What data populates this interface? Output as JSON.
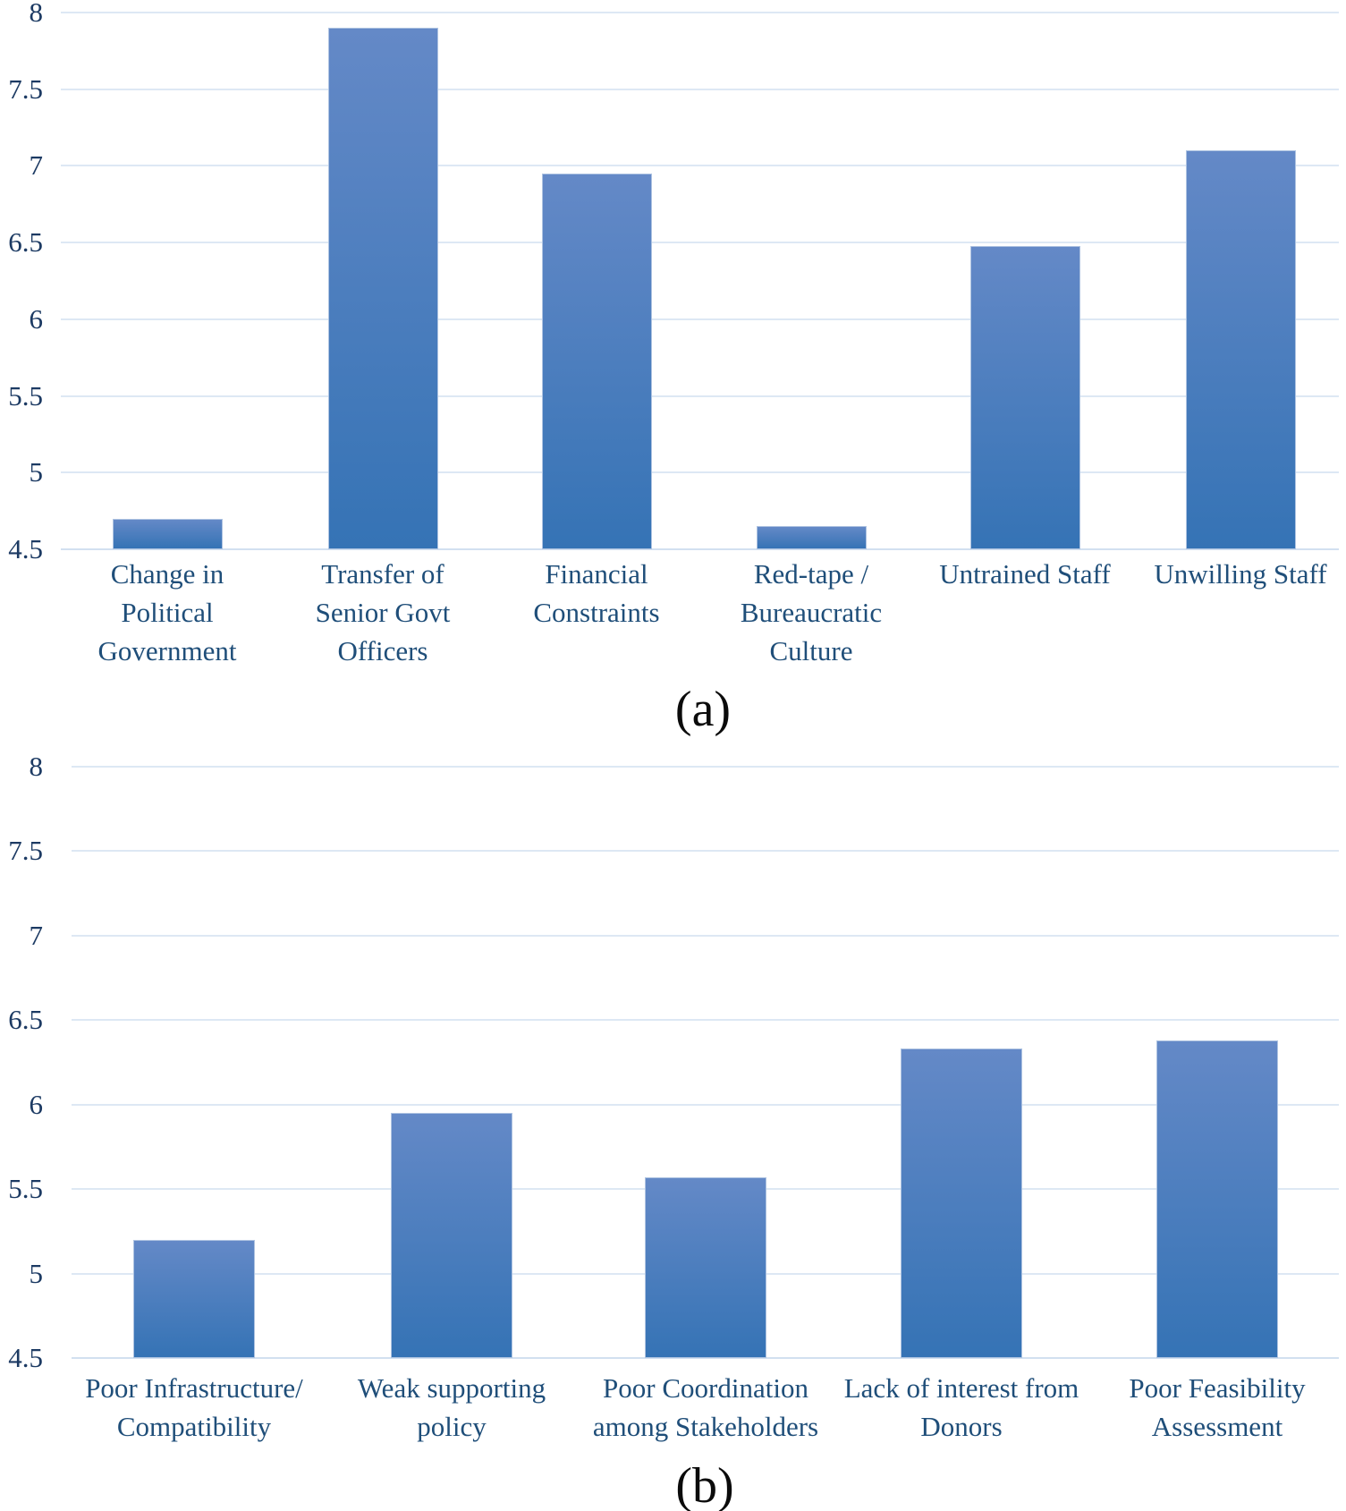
{
  "figure": {
    "panels": [
      {
        "caption": "(a)"
      },
      {
        "caption": "(b)"
      }
    ]
  },
  "colors": {
    "bar_gradient_top": "#6489c7",
    "bar_gradient_bottom": "#3573b5",
    "bar_border": "#aec3e1",
    "gridline": "#dde8f4",
    "baseline": "#d2e0f0",
    "tick_text": "#1c3a63",
    "category_text": "#1f4e79",
    "caption_text": "#0b0b0b"
  },
  "chart_data": [
    {
      "type": "bar",
      "caption": "(a)",
      "title": "",
      "xlabel": "",
      "ylabel": "",
      "categories": [
        "Change in Political Government",
        "Transfer of Senior Govt Officers",
        "Financial Constraints",
        "Red-tape / Bureaucratic Culture",
        "Untrained Staff",
        "Unwilling Staff"
      ],
      "category_lines": [
        [
          "Change in",
          "Political",
          "Government"
        ],
        [
          "Transfer of",
          "Senior Govt",
          "Officers"
        ],
        [
          "Financial",
          "Constraints"
        ],
        [
          "Red-tape /",
          "Bureaucratic",
          "Culture"
        ],
        [
          "Untrained Staff"
        ],
        [
          "Unwilling Staff"
        ]
      ],
      "values": [
        4.7,
        7.9,
        6.95,
        4.65,
        6.48,
        7.1
      ],
      "ylim": [
        4.5,
        8
      ],
      "yticks": [
        4.5,
        5,
        5.5,
        6,
        6.5,
        7,
        7.5,
        8
      ],
      "grid": true,
      "legend": "none"
    },
    {
      "type": "bar",
      "caption": "(b)",
      "title": "",
      "xlabel": "",
      "ylabel": "",
      "categories": [
        "Poor Infrastructure/ Compatibility",
        "Weak supporting policy",
        "Poor Coordination among Stakeholders",
        "Lack of interest from Donors",
        "Poor Feasibility Assessment"
      ],
      "category_lines": [
        [
          "Poor Infrastructure/",
          "Compatibility"
        ],
        [
          "Weak supporting",
          "policy"
        ],
        [
          "Poor Coordination",
          "among Stakeholders"
        ],
        [
          "Lack of interest from",
          "Donors"
        ],
        [
          "Poor Feasibility",
          "Assessment"
        ]
      ],
      "values": [
        5.2,
        5.95,
        5.57,
        6.33,
        6.38
      ],
      "ylim": [
        4.5,
        8
      ],
      "yticks": [
        4.5,
        5,
        5.5,
        6,
        6.5,
        7,
        7.5,
        8
      ],
      "grid": true,
      "legend": "none"
    }
  ]
}
